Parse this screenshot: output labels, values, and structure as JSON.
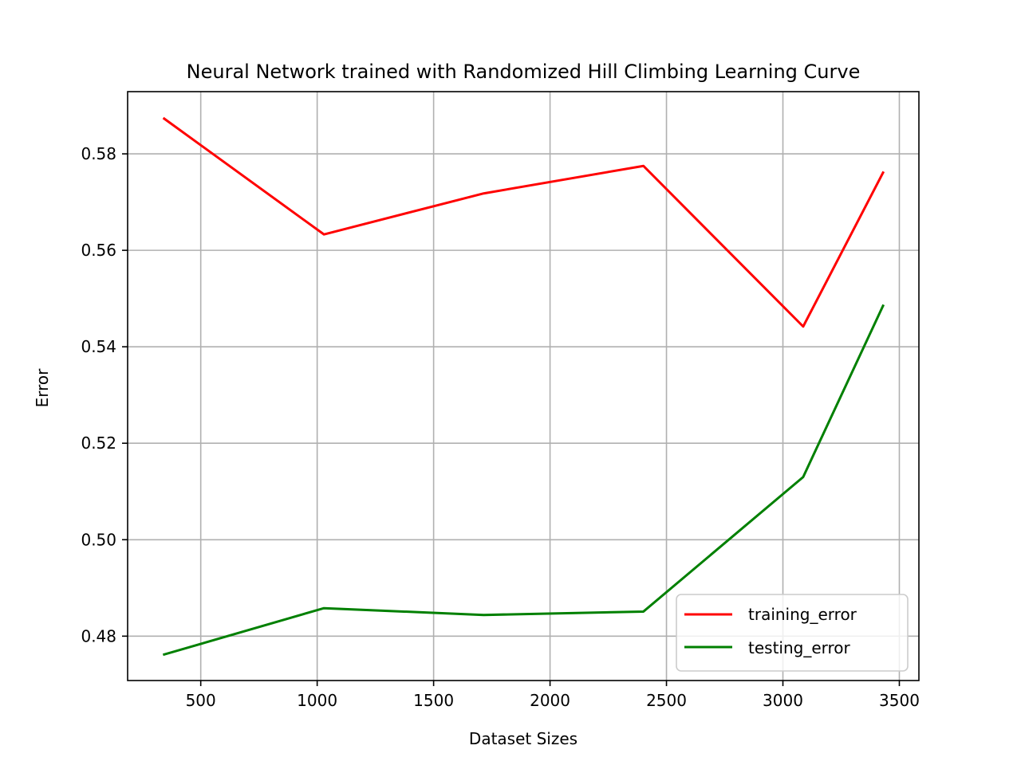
{
  "chart_data": {
    "type": "line",
    "title": "Neural Network trained with Randomized Hill Climbing Learning Curve",
    "xlabel": "Dataset Sizes",
    "ylabel": "Error",
    "xlim": [
      186,
      3584
    ],
    "ylim": [
      0.4708,
      0.5929
    ],
    "x_ticks": [
      500,
      1000,
      1500,
      2000,
      2500,
      3000,
      3500
    ],
    "x_tick_labels": [
      "500",
      "1000",
      "1500",
      "2000",
      "2500",
      "3000",
      "3500"
    ],
    "y_ticks": [
      0.48,
      0.5,
      0.52,
      0.54,
      0.56,
      0.58
    ],
    "y_tick_labels": [
      "0.48",
      "0.50",
      "0.52",
      "0.54",
      "0.56",
      "0.58"
    ],
    "grid": true,
    "legend_position": "lower-right",
    "x": [
      343,
      1029,
      1715,
      2401,
      3087,
      3430
    ],
    "series": [
      {
        "name": "training_error",
        "color": "#ff0000",
        "values": [
          0.5873,
          0.5633,
          0.5718,
          0.5775,
          0.5442,
          0.5761
        ]
      },
      {
        "name": "testing_error",
        "color": "#008000",
        "values": [
          0.4762,
          0.4858,
          0.4844,
          0.4851,
          0.513,
          0.5485
        ]
      }
    ]
  }
}
